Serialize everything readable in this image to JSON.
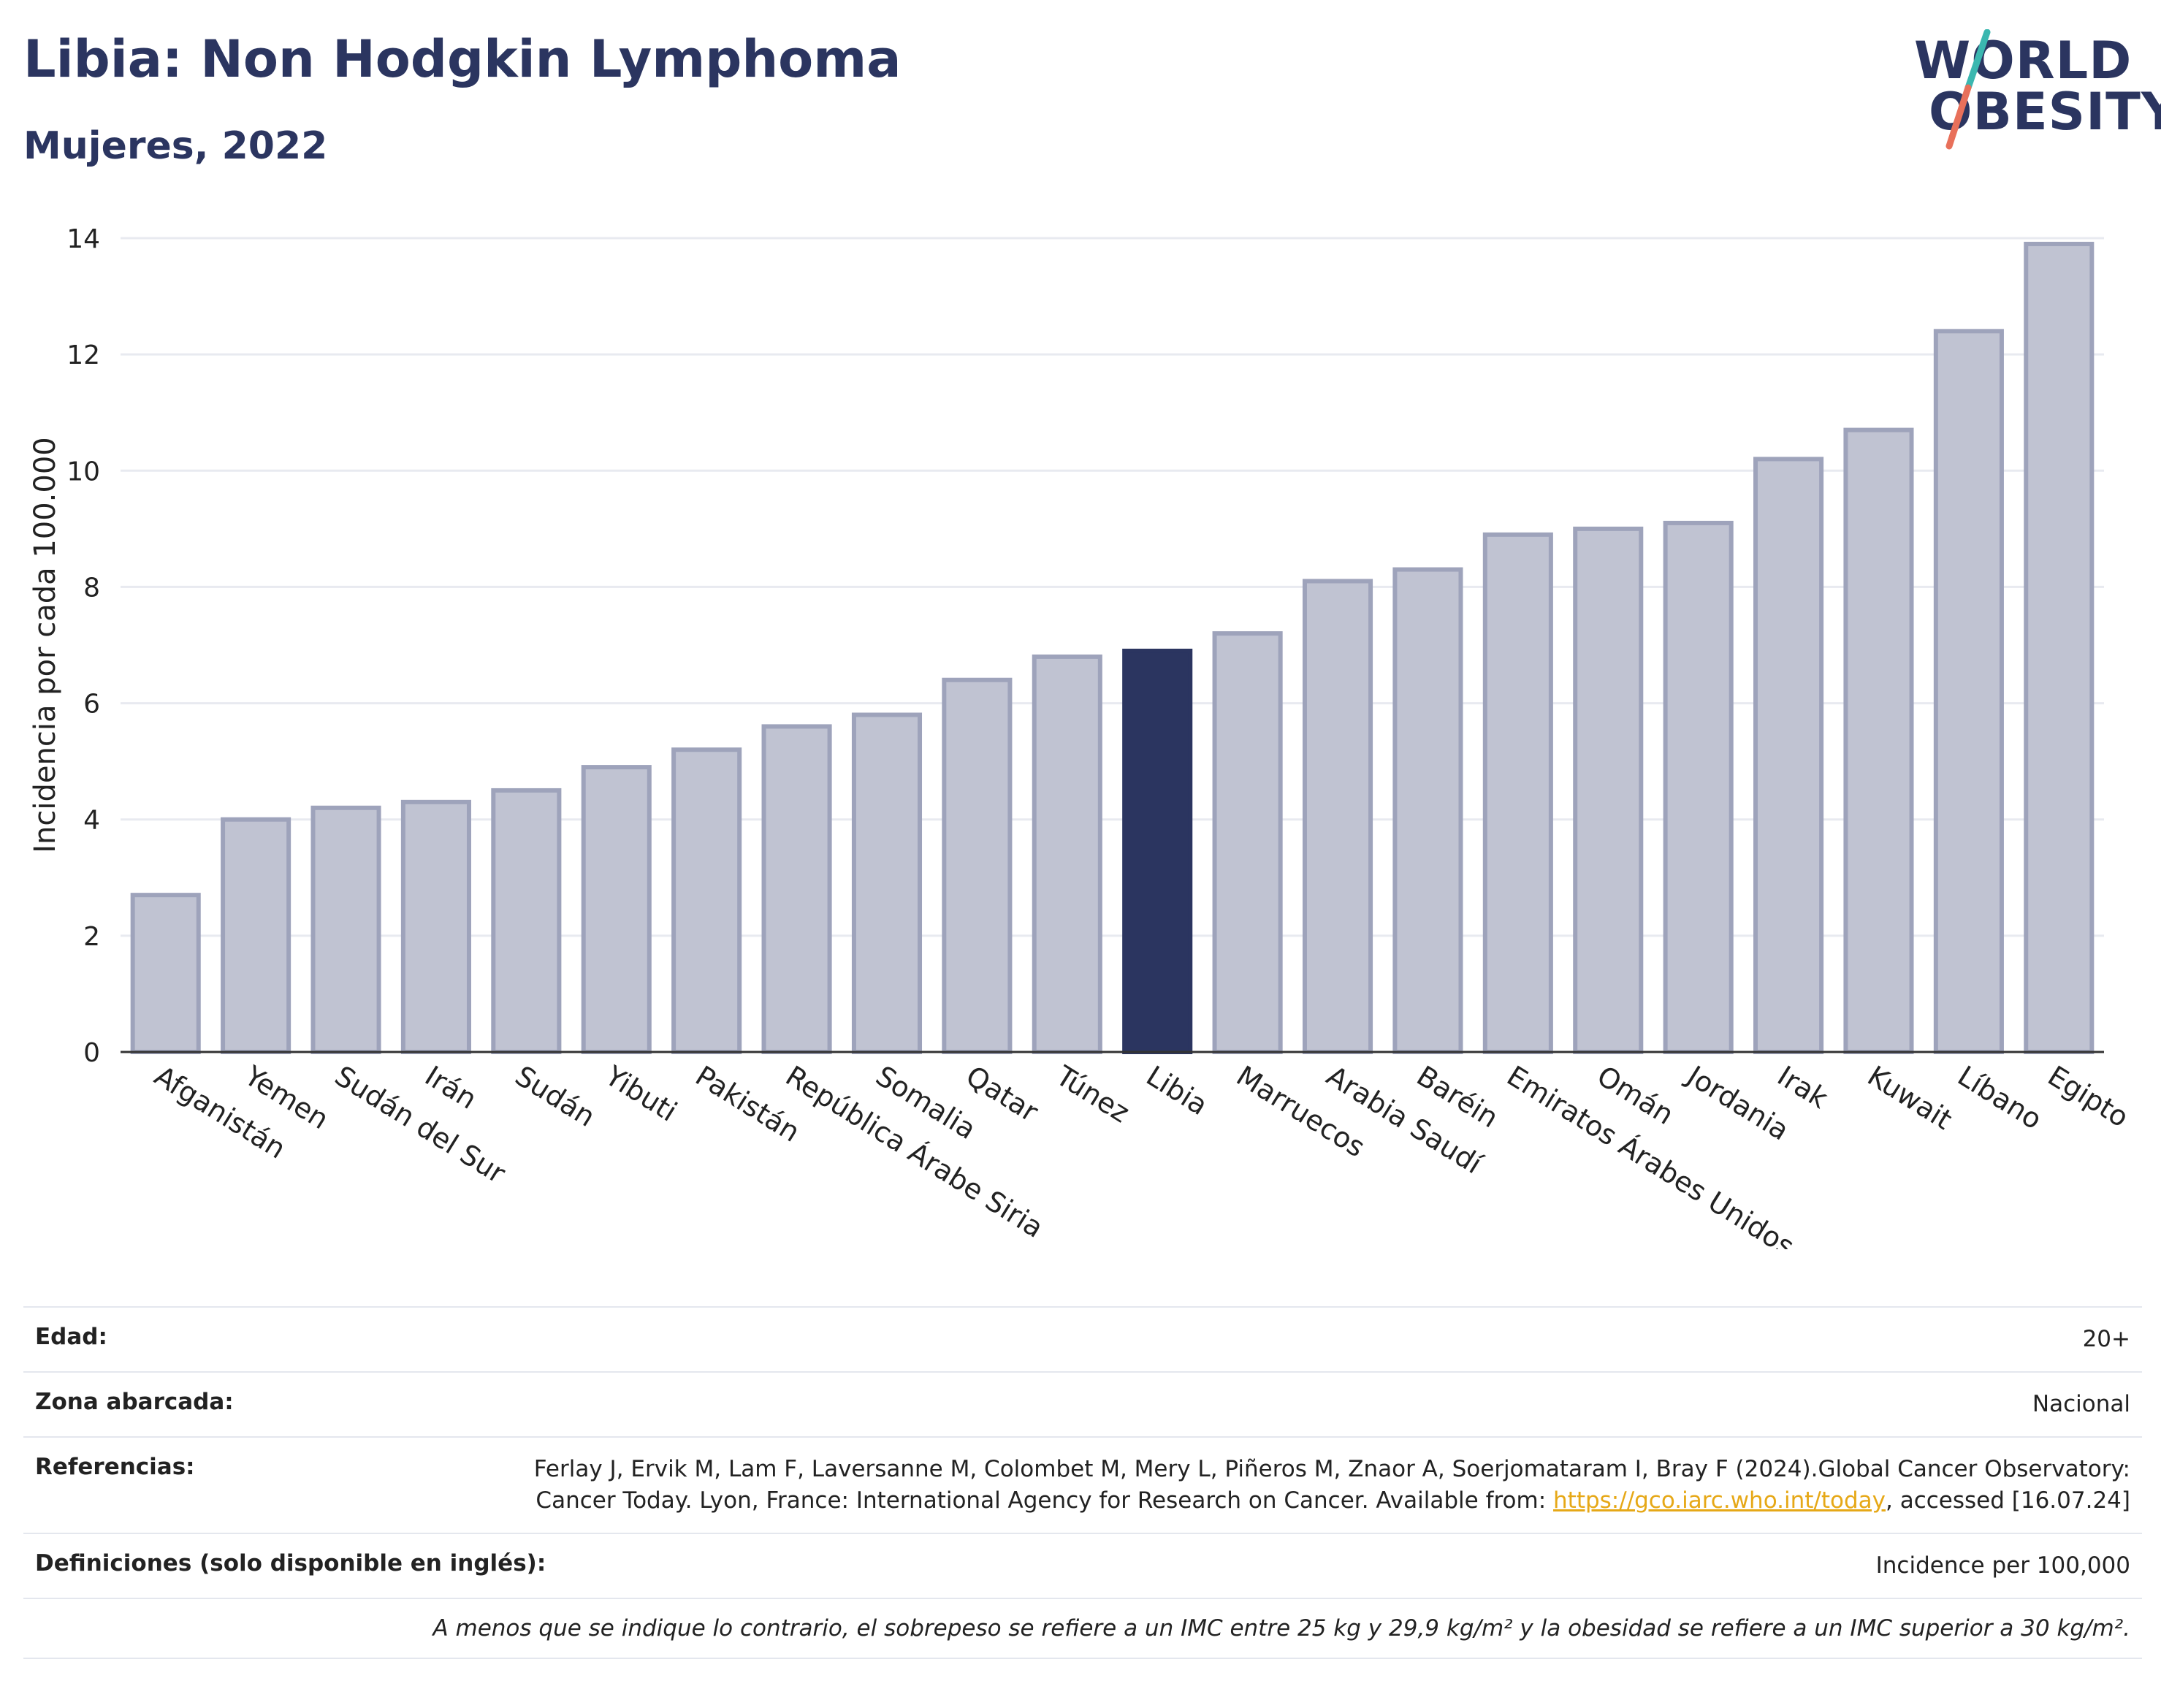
{
  "header": {
    "title": "Libia: Non Hodgkin Lymphoma",
    "subtitle": "Mujeres, 2022"
  },
  "logo": {
    "line1": "WORLD",
    "line2": "OBESITY"
  },
  "colors": {
    "highlight": "#2b3560",
    "bar": "#c0c3d2",
    "bar_border": "#9ea3bb",
    "grid": "#e8eaf0",
    "logo_teal": "#3bb7b0",
    "logo_red": "#e8705a"
  },
  "chart_data": {
    "type": "bar",
    "categories": [
      "Afganistán",
      "Yemen",
      "Sudán del Sur",
      "Irán",
      "Sudán",
      "Yibuti",
      "Pakistán",
      "República Árabe Siria",
      "Somalia",
      "Qatar",
      "Túnez",
      "Libia",
      "Marruecos",
      "Arabia Saudí",
      "Baréin",
      "Emiratos Árabes Unidos",
      "Omán",
      "Jordania",
      "Irak",
      "Kuwait",
      "Líbano",
      "Egipto"
    ],
    "values": [
      2.7,
      4.0,
      4.2,
      4.3,
      4.5,
      4.9,
      5.2,
      5.6,
      5.8,
      6.4,
      6.8,
      6.9,
      7.2,
      8.1,
      8.3,
      8.9,
      9.0,
      9.1,
      10.2,
      10.7,
      12.4,
      13.9
    ],
    "highlight": "Libia",
    "ylabel": "Incidencia por cada 100.000",
    "ylim": [
      0,
      14
    ],
    "yticks": [
      0,
      2,
      4,
      6,
      8,
      10,
      12,
      14
    ],
    "grid": true
  },
  "meta": {
    "age_label": "Edad:",
    "age_value": "20+",
    "area_label": "Zona abarcada:",
    "area_value": "Nacional",
    "refs_label": "Referencias:",
    "refs_text_1": "Ferlay J, Ervik M, Lam F, Laversanne M, Colombet M, Mery L, Piñeros M, Znaor A, Soerjomataram I, Bray F (2024).Global Cancer Observatory: Cancer Today. Lyon, France: International Agency for Research on Cancer. Available from: ",
    "refs_link": "https://gco.iarc.who.int/today",
    "refs_text_2": ", accessed [16.07.24]",
    "defs_label": "Definiciones (solo disponible en inglés):",
    "defs_value": "Incidence per 100,000",
    "note": "A menos que se indique lo contrario, el sobrepeso se refiere a un IMC entre 25 kg y 29,9 kg/m² y la obesidad se refiere a un IMC superior a 30 kg/m²."
  }
}
